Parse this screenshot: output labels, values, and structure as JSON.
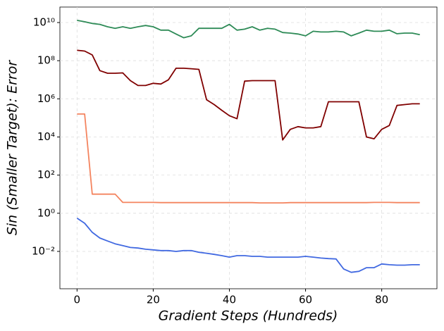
{
  "chart_data": {
    "type": "line",
    "x_label": "Gradient Steps (Hundreds)",
    "y_label": "Sin (Smaller Target): Error",
    "x": [
      0,
      2,
      4,
      6,
      8,
      10,
      12,
      14,
      16,
      18,
      20,
      22,
      24,
      26,
      28,
      30,
      32,
      34,
      36,
      38,
      40,
      42,
      44,
      46,
      48,
      50,
      52,
      54,
      56,
      58,
      60,
      62,
      64,
      66,
      68,
      70,
      72,
      74,
      76,
      78,
      80,
      82,
      84,
      86,
      88,
      90
    ],
    "series": [
      {
        "color": "#2e8b57",
        "values": [
          13000000000.0,
          11000000000.0,
          9000000000.0,
          8000000000.0,
          6000000000.0,
          5000000000.0,
          6000000000.0,
          5000000000.0,
          6000000000.0,
          7000000000.0,
          6000000000.0,
          4000000000.0,
          4000000000.0,
          2500000000.0,
          1600000000.0,
          2000000000.0,
          5000000000.0,
          5000000000.0,
          5000000000.0,
          5000000000.0,
          8000000000.0,
          4000000000.0,
          4500000000.0,
          6000000000.0,
          4000000000.0,
          5000000000.0,
          4500000000.0,
          3000000000.0,
          2800000000.0,
          2500000000.0,
          2000000000.0,
          3500000000.0,
          3200000000.0,
          3200000000.0,
          3500000000.0,
          3200000000.0,
          2000000000.0,
          2800000000.0,
          4000000000.0,
          3500000000.0,
          3500000000.0,
          4000000000.0,
          2600000000.0,
          2800000000.0,
          2800000000.0,
          2300000000.0
        ]
      },
      {
        "color": "#800000",
        "values": [
          350000000.0,
          320000000.0,
          200000000.0,
          30000000.0,
          22000000.0,
          22000000.0,
          23000000.0,
          9000000.0,
          5000000.0,
          5000000.0,
          6500000.0,
          6000000.0,
          10000000.0,
          40000000.0,
          40000000.0,
          38000000.0,
          35000000.0,
          900000.0,
          500000.0,
          250000.0,
          130000.0,
          90000.0,
          8500000.0,
          9000000.0,
          9000000.0,
          9000000.0,
          9000000.0,
          7000.0,
          25000.0,
          35000.0,
          30000.0,
          30000.0,
          35000.0,
          700000.0,
          700000.0,
          700000.0,
          700000.0,
          700000.0,
          10000.0,
          8000.0,
          25000.0,
          40000.0,
          450000.0,
          500000.0,
          550000.0,
          550000.0
        ]
      },
      {
        "color": "#f4845f",
        "values": [
          160000.0,
          160000.0,
          10,
          10,
          10,
          10,
          3.7,
          3.7,
          3.7,
          3.7,
          3.7,
          3.6,
          3.6,
          3.6,
          3.6,
          3.6,
          3.6,
          3.6,
          3.6,
          3.6,
          3.6,
          3.6,
          3.6,
          3.6,
          3.5,
          3.5,
          3.5,
          3.5,
          3.6,
          3.6,
          3.6,
          3.6,
          3.6,
          3.6,
          3.6,
          3.6,
          3.6,
          3.6,
          3.6,
          3.7,
          3.7,
          3.7,
          3.6,
          3.6,
          3.6,
          3.6
        ]
      },
      {
        "color": "#4169e1",
        "values": [
          0.55,
          0.3,
          0.1,
          0.05,
          0.035,
          0.025,
          0.02,
          0.016,
          0.015,
          0.013,
          0.012,
          0.011,
          0.011,
          0.01,
          0.011,
          0.011,
          0.009,
          0.008,
          0.007,
          0.006,
          0.005,
          0.006,
          0.006,
          0.0055,
          0.0055,
          0.005,
          0.005,
          0.005,
          0.005,
          0.005,
          0.0055,
          0.005,
          0.0045,
          0.0042,
          0.004,
          0.0012,
          0.0008,
          0.0009,
          0.0014,
          0.0014,
          0.0022,
          0.002,
          0.0019,
          0.0019,
          0.002,
          0.002
        ]
      }
    ],
    "xlim": [
      -4.5,
      94.5
    ],
    "xticks": [
      0,
      20,
      40,
      60,
      80
    ],
    "ylim": [
      0.00011,
      65000000000.0
    ],
    "log_y": true,
    "yticks": [
      {
        "value": 0.01,
        "label": "10⁻²"
      },
      {
        "value": 1,
        "label": "10⁰"
      },
      {
        "value": 100,
        "label": "10²"
      },
      {
        "value": 10000,
        "label": "10⁴"
      },
      {
        "value": 1000000,
        "label": "10⁶"
      },
      {
        "value": 100000000,
        "label": "10⁸"
      },
      {
        "value": 10000000000,
        "label": "10¹⁰"
      }
    ],
    "grid": true
  }
}
